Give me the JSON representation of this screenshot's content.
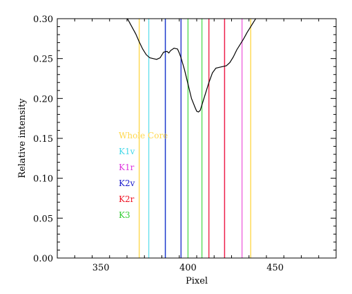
{
  "chart_data": {
    "type": "line",
    "xlabel": "Pixel",
    "ylabel": "Relative intensity",
    "xlim": [
      325,
      485
    ],
    "ylim": [
      0.0,
      0.3
    ],
    "x_ticks": [
      350,
      400,
      450
    ],
    "x_tick_labels": [
      "350",
      "400",
      "450"
    ],
    "y_ticks": [
      0.0,
      0.05,
      0.1,
      0.15,
      0.2,
      0.25,
      0.3
    ],
    "y_tick_labels": [
      "0.00",
      "0.05",
      "0.10",
      "0.15",
      "0.20",
      "0.25",
      "0.30"
    ],
    "grid": false,
    "legend_position": "inside-left-middle",
    "series": [
      {
        "type": "line",
        "color": "#000000",
        "points": [
          [
            364,
            0.305
          ],
          [
            366,
            0.297
          ],
          [
            368,
            0.289
          ],
          [
            370,
            0.281
          ],
          [
            372,
            0.271
          ],
          [
            374,
            0.262
          ],
          [
            376,
            0.255
          ],
          [
            378,
            0.251
          ],
          [
            380,
            0.25
          ],
          [
            382,
            0.249
          ],
          [
            384,
            0.251
          ],
          [
            386,
            0.258
          ],
          [
            388,
            0.259
          ],
          [
            389,
            0.257
          ],
          [
            390,
            0.26
          ],
          [
            392,
            0.263
          ],
          [
            394,
            0.262
          ],
          [
            395,
            0.257
          ],
          [
            396,
            0.251
          ],
          [
            398,
            0.236
          ],
          [
            400,
            0.218
          ],
          [
            402,
            0.2
          ],
          [
            404,
            0.189
          ],
          [
            405,
            0.184
          ],
          [
            406,
            0.183
          ],
          [
            407,
            0.185
          ],
          [
            408,
            0.192
          ],
          [
            410,
            0.206
          ],
          [
            412,
            0.22
          ],
          [
            414,
            0.232
          ],
          [
            416,
            0.238
          ],
          [
            418,
            0.239
          ],
          [
            420,
            0.24
          ],
          [
            422,
            0.241
          ],
          [
            424,
            0.245
          ],
          [
            426,
            0.252
          ],
          [
            428,
            0.261
          ],
          [
            430,
            0.268
          ],
          [
            432,
            0.275
          ],
          [
            434,
            0.283
          ],
          [
            436,
            0.29
          ],
          [
            438,
            0.297
          ],
          [
            440,
            0.304
          ]
        ]
      }
    ],
    "vertical_lines": [
      {
        "group": "Whole Core",
        "color": "#ffd84d",
        "x": 372
      },
      {
        "group": "Whole Core",
        "color": "#ffd84d",
        "x": 436
      },
      {
        "group": "K1v",
        "color": "#66e0ee",
        "x": 377.5
      },
      {
        "group": "K1v",
        "color": "#66e0ee",
        "x": 387
      },
      {
        "group": "K1r",
        "color": "#ee66dd",
        "x": 421
      },
      {
        "group": "K1r",
        "color": "#ee66dd",
        "x": 431
      },
      {
        "group": "K2v",
        "color": "#2233cc",
        "x": 387
      },
      {
        "group": "K2v",
        "color": "#2233cc",
        "x": 396
      },
      {
        "group": "K2r",
        "color": "#ee2244",
        "x": 412
      },
      {
        "group": "K2r",
        "color": "#ee2244",
        "x": 421
      },
      {
        "group": "K3",
        "color": "#55dd55",
        "x": 400
      },
      {
        "group": "K3",
        "color": "#55dd55",
        "x": 408
      }
    ],
    "legend": [
      {
        "label": "Whole Core",
        "color": "#ffd84d"
      },
      {
        "label": "K1v",
        "color": "#44d8e8"
      },
      {
        "label": "K1r",
        "color": "#dd33dd"
      },
      {
        "label": "K2v",
        "color": "#1a1acc"
      },
      {
        "label": "K2r",
        "color": "#ee1122"
      },
      {
        "label": "K3",
        "color": "#33cc33"
      }
    ]
  }
}
